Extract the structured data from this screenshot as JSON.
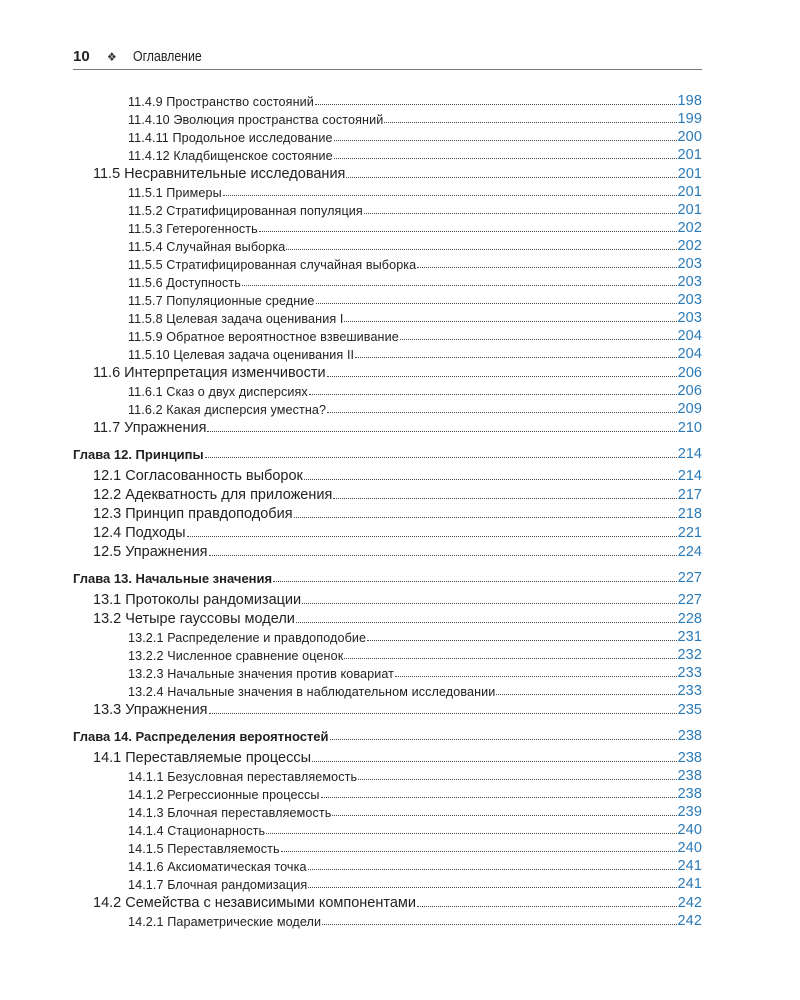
{
  "header": {
    "page_number": "10",
    "ornament": "❖",
    "title": "Оглавление"
  },
  "colors": {
    "page_link": "#2a7ab8",
    "text": "#222222"
  },
  "toc": [
    {
      "level": 3,
      "title": "11.4.9 Пространство состояний",
      "page": "198"
    },
    {
      "level": 3,
      "title": "11.4.10 Эволюция пространства состояний",
      "page": "199"
    },
    {
      "level": 3,
      "title": "11.4.11 Продольное исследование",
      "page": "200"
    },
    {
      "level": 3,
      "title": "11.4.12 Кладбищенское состояние",
      "page": "201"
    },
    {
      "level": 2,
      "title": "11.5 Несравнительные исследования",
      "page": "201"
    },
    {
      "level": 3,
      "title": "11.5.1 Примеры",
      "page": "201"
    },
    {
      "level": 3,
      "title": "11.5.2 Стратифицированная популяция",
      "page": "201"
    },
    {
      "level": 3,
      "title": "11.5.3 Гетерогенность",
      "page": "202"
    },
    {
      "level": 3,
      "title": "11.5.4 Случайная выборка",
      "page": "202"
    },
    {
      "level": 3,
      "title": "11.5.5 Стратифицированная случайная выборка",
      "page": "203"
    },
    {
      "level": 3,
      "title": "11.5.6 Доступность",
      "page": "203"
    },
    {
      "level": 3,
      "title": "11.5.7 Популяционные средние",
      "page": "203"
    },
    {
      "level": 3,
      "title": "11.5.8 Целевая задача оценивания I",
      "page": "203"
    },
    {
      "level": 3,
      "title": "11.5.9 Обратное вероятностное взвешивание",
      "page": "204"
    },
    {
      "level": 3,
      "title": "11.5.10 Целевая задача оценивания II",
      "page": "204"
    },
    {
      "level": 2,
      "title": "11.6 Интерпретация изменчивости",
      "page": "206"
    },
    {
      "level": 3,
      "title": "11.6.1 Сказ о двух дисперсиях",
      "page": "206"
    },
    {
      "level": 3,
      "title": "11.6.2 Какая дисперсия уместна?",
      "page": "209"
    },
    {
      "level": 2,
      "title": "11.7 Упражнения",
      "page": "210"
    },
    {
      "level": 1,
      "title": "Глава 12. Принципы",
      "page": "214"
    },
    {
      "level": 2,
      "title": "12.1 Согласованность выборок",
      "page": "214"
    },
    {
      "level": 2,
      "title": "12.2 Адекватность для приложения",
      "page": "217"
    },
    {
      "level": 2,
      "title": "12.3 Принцип правдоподобия",
      "page": "218"
    },
    {
      "level": 2,
      "title": "12.4 Подходы",
      "page": "221"
    },
    {
      "level": 2,
      "title": "12.5 Упражнения",
      "page": "224"
    },
    {
      "level": 1,
      "title": "Глава 13. Начальные значения",
      "page": "227"
    },
    {
      "level": 2,
      "title": "13.1 Протоколы рандомизации",
      "page": "227"
    },
    {
      "level": 2,
      "title": "13.2 Четыре гауссовы модели",
      "page": "228"
    },
    {
      "level": 3,
      "title": "13.2.1 Распределение и правдоподобие",
      "page": "231"
    },
    {
      "level": 3,
      "title": "13.2.2 Численное сравнение оценок",
      "page": "232"
    },
    {
      "level": 3,
      "title": "13.2.3 Начальные значения против ковариат",
      "page": "233"
    },
    {
      "level": 3,
      "title": "13.2.4 Начальные значения в наблюдательном исследовании",
      "page": "233"
    },
    {
      "level": 2,
      "title": "13.3 Упражнения",
      "page": "235"
    },
    {
      "level": 1,
      "title": "Глава 14. Распределения вероятностей",
      "page": "238"
    },
    {
      "level": 2,
      "title": "14.1 Переставляемые процессы",
      "page": "238"
    },
    {
      "level": 3,
      "title": "14.1.1 Безусловная переставляемость",
      "page": "238"
    },
    {
      "level": 3,
      "title": "14.1.2 Регрессионные процессы",
      "page": "238"
    },
    {
      "level": 3,
      "title": "14.1.3 Блочная переставляемость",
      "page": "239"
    },
    {
      "level": 3,
      "title": "14.1.4 Стационарность",
      "page": "240"
    },
    {
      "level": 3,
      "title": "14.1.5 Переставляемость",
      "page": "240"
    },
    {
      "level": 3,
      "title": "14.1.6 Аксиоматическая точка",
      "page": "241"
    },
    {
      "level": 3,
      "title": "14.1.7 Блочная рандомизация",
      "page": "241"
    },
    {
      "level": 2,
      "title": "14.2 Семейства с независимыми компонентами",
      "page": "242"
    },
    {
      "level": 3,
      "title": "14.2.1 Параметрические модели",
      "page": "242"
    }
  ]
}
